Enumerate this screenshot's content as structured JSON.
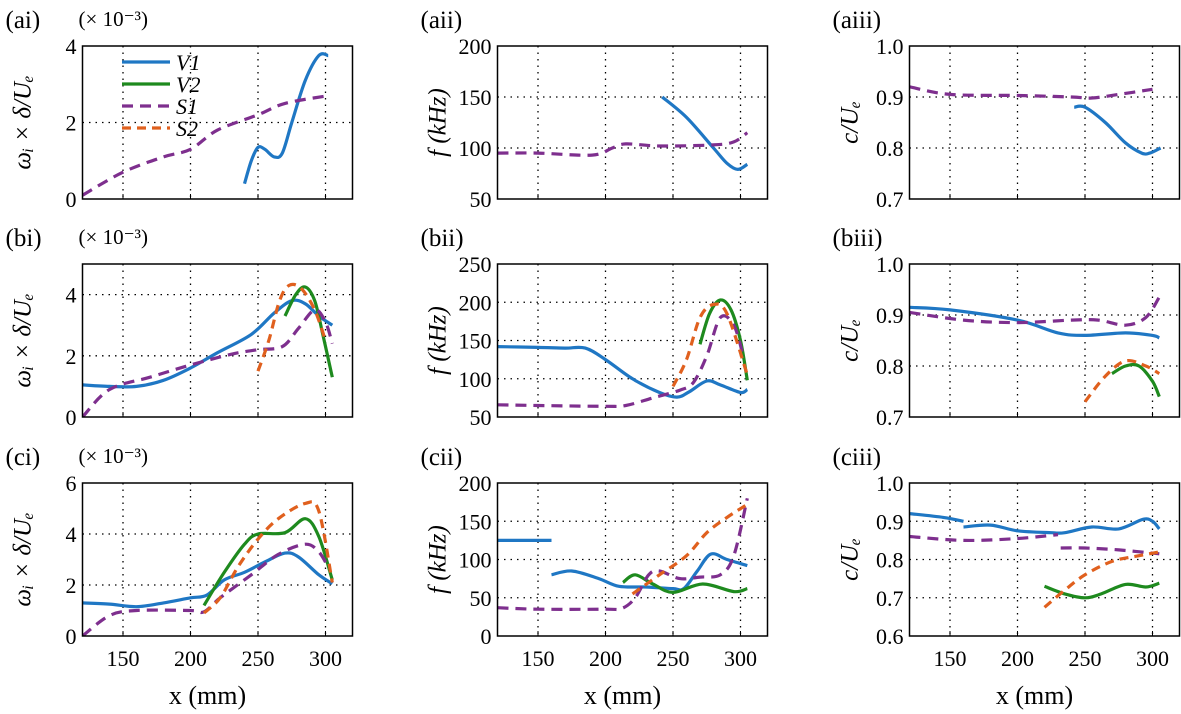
{
  "colors": {
    "V1": "#1f77c4",
    "V2": "#1e8a1e",
    "S1": "#7e2f8e",
    "S2": "#e0601e"
  },
  "legend": {
    "placement": "top-left of panel (ai)",
    "entries": [
      {
        "key": "V1",
        "label": "V1",
        "style": "solid"
      },
      {
        "key": "V2",
        "label": "V2",
        "style": "solid"
      },
      {
        "key": "S1",
        "label": "S1",
        "style": "dashed"
      },
      {
        "key": "S2",
        "label": "S2",
        "style": "dashed"
      }
    ]
  },
  "chart_data": [
    {
      "id": "ai",
      "type": "line",
      "panel_label": "(ai)",
      "multiplier": "(× 10⁻³)",
      "ylabel": "ωᵢ × δ/Uₑ",
      "xlabel": "",
      "xlim": [
        120,
        320
      ],
      "ylim": [
        0,
        4
      ],
      "yticks": [
        0,
        2,
        4
      ],
      "xticks": [
        150,
        200,
        250,
        300
      ],
      "show_xticklabels": false,
      "grid": true,
      "series": [
        {
          "key": "V1",
          "name": "V1",
          "x": [
            240,
            245,
            250,
            255,
            262,
            268,
            275,
            285,
            295,
            302
          ],
          "y": [
            0.4,
            1.0,
            1.35,
            1.3,
            1.1,
            1.2,
            2.0,
            3.1,
            3.75,
            3.75
          ]
        },
        {
          "key": "S1",
          "name": "S1",
          "x": [
            120,
            150,
            180,
            200,
            220,
            250,
            270,
            302
          ],
          "y": [
            0.1,
            0.7,
            1.1,
            1.3,
            1.8,
            2.2,
            2.5,
            2.7
          ]
        }
      ]
    },
    {
      "id": "aii",
      "type": "line",
      "panel_label": "(aii)",
      "ylabel": "f (kHz)",
      "xlabel": "",
      "xlim": [
        120,
        320
      ],
      "ylim": [
        50,
        200
      ],
      "yticks": [
        50,
        100,
        150,
        200
      ],
      "xticks": [
        150,
        200,
        250,
        300
      ],
      "show_xticklabels": false,
      "grid": true,
      "series": [
        {
          "key": "V1",
          "name": "V1",
          "x": [
            242,
            260,
            280,
            290,
            298,
            305
          ],
          "y": [
            150,
            130,
            100,
            85,
            79,
            84
          ]
        },
        {
          "key": "S1",
          "name": "S1",
          "x": [
            120,
            150,
            190,
            205,
            215,
            240,
            280,
            295,
            305
          ],
          "y": [
            95,
            95,
            93,
            100,
            104,
            102,
            103,
            106,
            115
          ]
        }
      ]
    },
    {
      "id": "aiii",
      "type": "line",
      "panel_label": "(aiii)",
      "ylabel": "c/Uₑ",
      "xlabel": "",
      "xlim": [
        120,
        320
      ],
      "ylim": [
        0.7,
        1.0
      ],
      "yticks": [
        "0.7",
        "0.8",
        "0.9",
        "1.0"
      ],
      "xticks": [
        150,
        200,
        250,
        300
      ],
      "show_xticklabels": false,
      "grid": true,
      "series": [
        {
          "key": "V1",
          "name": "V1",
          "x": [
            242,
            250,
            265,
            280,
            292,
            298,
            306
          ],
          "y": [
            0.88,
            0.88,
            0.85,
            0.81,
            0.79,
            0.79,
            0.8
          ]
        },
        {
          "key": "S1",
          "name": "S1",
          "x": [
            120,
            150,
            200,
            240,
            255,
            275,
            300
          ],
          "y": [
            0.92,
            0.905,
            0.903,
            0.9,
            0.898,
            0.905,
            0.915
          ]
        }
      ]
    },
    {
      "id": "bi",
      "type": "line",
      "panel_label": "(bi)",
      "multiplier": "(× 10⁻³)",
      "ylabel": "ωᵢ × δ/Uₑ",
      "xlabel": "",
      "xlim": [
        120,
        320
      ],
      "ylim": [
        0,
        5
      ],
      "yticks": [
        0,
        2,
        4
      ],
      "xticks": [
        150,
        200,
        250,
        300
      ],
      "show_xticklabels": false,
      "grid": true,
      "series": [
        {
          "key": "V1",
          "name": "V1",
          "x": [
            120,
            140,
            160,
            180,
            200,
            220,
            245,
            262,
            275,
            285,
            295,
            305
          ],
          "y": [
            1.05,
            1.0,
            1.0,
            1.2,
            1.6,
            2.1,
            2.7,
            3.4,
            3.8,
            3.7,
            3.3,
            3.0
          ]
        },
        {
          "key": "V2",
          "name": "V2",
          "x": [
            270,
            278,
            285,
            292,
            298,
            305
          ],
          "y": [
            3.3,
            4.0,
            4.25,
            3.8,
            2.7,
            1.3
          ]
        },
        {
          "key": "S1",
          "name": "S1",
          "x": [
            120,
            140,
            170,
            200,
            230,
            250,
            268,
            280,
            292,
            300,
            305
          ],
          "y": [
            0.0,
            0.9,
            1.3,
            1.7,
            2.05,
            2.2,
            2.3,
            2.9,
            3.5,
            3.1,
            2.4
          ]
        },
        {
          "key": "S2",
          "name": "S2",
          "x": [
            250,
            258,
            266,
            273,
            282,
            292,
            300
          ],
          "y": [
            1.5,
            2.5,
            3.8,
            4.3,
            4.2,
            3.5,
            2.5
          ]
        }
      ]
    },
    {
      "id": "bii",
      "type": "line",
      "panel_label": "(bii)",
      "ylabel": "f (kHz)",
      "xlabel": "",
      "xlim": [
        120,
        320
      ],
      "ylim": [
        50,
        250
      ],
      "yticks": [
        50,
        100,
        150,
        200,
        250
      ],
      "xticks": [
        150,
        200,
        250,
        300
      ],
      "show_xticklabels": false,
      "grid": true,
      "series": [
        {
          "key": "V1",
          "name": "V1",
          "x": [
            120,
            150,
            170,
            185,
            200,
            220,
            240,
            253,
            262,
            275,
            285,
            300,
            305
          ],
          "y": [
            142,
            141,
            140,
            140,
            125,
            100,
            82,
            76,
            83,
            97,
            92,
            82,
            86
          ]
        },
        {
          "key": "V2",
          "name": "V2",
          "x": [
            270,
            277,
            285,
            293,
            300,
            305
          ],
          "y": [
            145,
            185,
            203,
            190,
            150,
            98
          ]
        },
        {
          "key": "S1",
          "name": "S1",
          "x": [
            120,
            150,
            200,
            215,
            235,
            255,
            265,
            275,
            285,
            295,
            302
          ],
          "y": [
            66,
            65,
            64,
            65,
            75,
            85,
            95,
            130,
            180,
            170,
            130
          ]
        },
        {
          "key": "S2",
          "name": "S2",
          "x": [
            250,
            260,
            270,
            280,
            290,
            305
          ],
          "y": [
            90,
            125,
            180,
            197,
            185,
            105
          ]
        }
      ]
    },
    {
      "id": "biii",
      "type": "line",
      "panel_label": "(biii)",
      "ylabel": "c/Uₑ",
      "xlabel": "",
      "xlim": [
        120,
        320
      ],
      "ylim": [
        0.7,
        1.0
      ],
      "yticks": [
        "0.7",
        "0.8",
        "0.9",
        "1.0"
      ],
      "xticks": [
        150,
        200,
        250,
        300
      ],
      "show_xticklabels": false,
      "grid": true,
      "series": [
        {
          "key": "V1",
          "name": "V1",
          "x": [
            120,
            150,
            200,
            230,
            250,
            280,
            300,
            305
          ],
          "y": [
            0.915,
            0.91,
            0.89,
            0.865,
            0.86,
            0.865,
            0.86,
            0.855
          ]
        },
        {
          "key": "V2",
          "name": "V2",
          "x": [
            270,
            280,
            290,
            300,
            305
          ],
          "y": [
            0.785,
            0.8,
            0.8,
            0.77,
            0.74
          ]
        },
        {
          "key": "S1",
          "name": "S1",
          "x": [
            120,
            160,
            200,
            240,
            260,
            280,
            295,
            305
          ],
          "y": [
            0.905,
            0.89,
            0.885,
            0.89,
            0.89,
            0.88,
            0.895,
            0.935
          ]
        },
        {
          "key": "S2",
          "name": "S2",
          "x": [
            250,
            265,
            280,
            295,
            305
          ],
          "y": [
            0.73,
            0.78,
            0.81,
            0.8,
            0.785
          ]
        }
      ]
    },
    {
      "id": "ci",
      "type": "line",
      "panel_label": "(ci)",
      "multiplier": "(× 10⁻³)",
      "ylabel": "ωᵢ × δ/Uₑ",
      "xlabel": "x (mm)",
      "xlim": [
        120,
        320
      ],
      "ylim": [
        0,
        6
      ],
      "yticks": [
        0,
        2,
        4,
        6
      ],
      "xticks": [
        150,
        200,
        250,
        300
      ],
      "show_xticklabels": true,
      "grid": true,
      "series": [
        {
          "key": "V1",
          "name": "V1",
          "x": [
            120,
            140,
            160,
            180,
            200,
            212,
            225,
            240,
            255,
            270,
            280,
            295,
            305
          ],
          "y": [
            1.3,
            1.25,
            1.15,
            1.3,
            1.5,
            1.6,
            2.2,
            2.5,
            2.9,
            3.25,
            3.1,
            2.4,
            2.05
          ]
        },
        {
          "key": "V2",
          "name": "V2",
          "x": [
            210,
            225,
            240,
            250,
            270,
            285,
            295,
            305
          ],
          "y": [
            1.2,
            2.5,
            3.6,
            4.0,
            4.05,
            4.6,
            3.9,
            2.2
          ]
        },
        {
          "key": "S1",
          "name": "S1",
          "x": [
            120,
            140,
            160,
            200,
            210,
            222,
            245,
            265,
            285,
            295,
            302
          ],
          "y": [
            0.0,
            0.8,
            1.0,
            1.0,
            0.95,
            1.5,
            2.4,
            3.2,
            3.6,
            3.3,
            2.7
          ]
        },
        {
          "key": "S2",
          "name": "S2",
          "x": [
            210,
            222,
            235,
            250,
            265,
            285,
            295,
            305
          ],
          "y": [
            0.9,
            1.5,
            2.7,
            3.8,
            4.6,
            5.2,
            4.9,
            2.1
          ]
        }
      ]
    },
    {
      "id": "cii",
      "type": "line",
      "panel_label": "(cii)",
      "ylabel": "f (kHz)",
      "xlabel": "x (mm)",
      "xlim": [
        120,
        320
      ],
      "ylim": [
        0,
        200
      ],
      "yticks": [
        0,
        50,
        100,
        150,
        200
      ],
      "xticks": [
        150,
        200,
        250,
        300
      ],
      "show_xticklabels": true,
      "grid": true,
      "series": [
        {
          "key": "V1",
          "name": "V1",
          "x": [
            120,
            160
          ],
          "y": [
            125,
            125
          ]
        },
        {
          "key": "V1",
          "name": "V1",
          "x": [
            160,
            175,
            195,
            210,
            230,
            250,
            258,
            268,
            278,
            290,
            305
          ],
          "y": [
            80,
            85,
            75,
            65,
            64,
            62,
            62,
            85,
            107,
            100,
            92
          ]
        },
        {
          "key": "V2",
          "name": "V2",
          "x": [
            213,
            222,
            235,
            250,
            272,
            295,
            305
          ],
          "y": [
            70,
            80,
            68,
            57,
            68,
            58,
            62
          ]
        },
        {
          "key": "S1",
          "name": "S1",
          "x": [
            120,
            150,
            200,
            212,
            222,
            232,
            240,
            255,
            270,
            285,
            295,
            305
          ],
          "y": [
            37,
            35,
            35,
            36,
            50,
            80,
            85,
            75,
            77,
            80,
            105,
            180
          ]
        },
        {
          "key": "S2",
          "name": "S2",
          "x": [
            220,
            240,
            260,
            275,
            290,
            305
          ],
          "y": [
            55,
            80,
            105,
            135,
            155,
            172
          ]
        }
      ]
    },
    {
      "id": "ciii",
      "type": "line",
      "panel_label": "(ciii)",
      "ylabel": "c/Uₑ",
      "xlabel": "x (mm)",
      "xlim": [
        120,
        320
      ],
      "ylim": [
        0.6,
        1.0
      ],
      "yticks": [
        "0.6",
        "0.7",
        "0.8",
        "0.9",
        "1.0"
      ],
      "xticks": [
        150,
        200,
        250,
        300
      ],
      "show_xticklabels": true,
      "grid": true,
      "series": [
        {
          "key": "V1",
          "name": "V1",
          "x": [
            120,
            145,
            160
          ],
          "y": [
            0.92,
            0.91,
            0.9
          ]
        },
        {
          "key": "V1",
          "name": "V1",
          "x": [
            160,
            180,
            200,
            225,
            235,
            255,
            275,
            293,
            300,
            305
          ],
          "y": [
            0.885,
            0.89,
            0.875,
            0.87,
            0.87,
            0.885,
            0.88,
            0.905,
            0.9,
            0.88
          ]
        },
        {
          "key": "V2",
          "name": "V2",
          "x": [
            220,
            235,
            250,
            262,
            280,
            295,
            305
          ],
          "y": [
            0.73,
            0.71,
            0.7,
            0.71,
            0.735,
            0.728,
            0.738
          ]
        },
        {
          "key": "S1",
          "name": "S1",
          "x": [
            120,
            160,
            200,
            230
          ],
          "y": [
            0.86,
            0.85,
            0.855,
            0.865
          ]
        },
        {
          "key": "S1",
          "name": "S1",
          "x": [
            232,
            250,
            275,
            305
          ],
          "y": [
            0.83,
            0.83,
            0.825,
            0.815
          ]
        },
        {
          "key": "S2",
          "name": "S2",
          "x": [
            220,
            235,
            250,
            270,
            290,
            305
          ],
          "y": [
            0.675,
            0.72,
            0.76,
            0.795,
            0.81,
            0.82
          ]
        }
      ]
    }
  ]
}
